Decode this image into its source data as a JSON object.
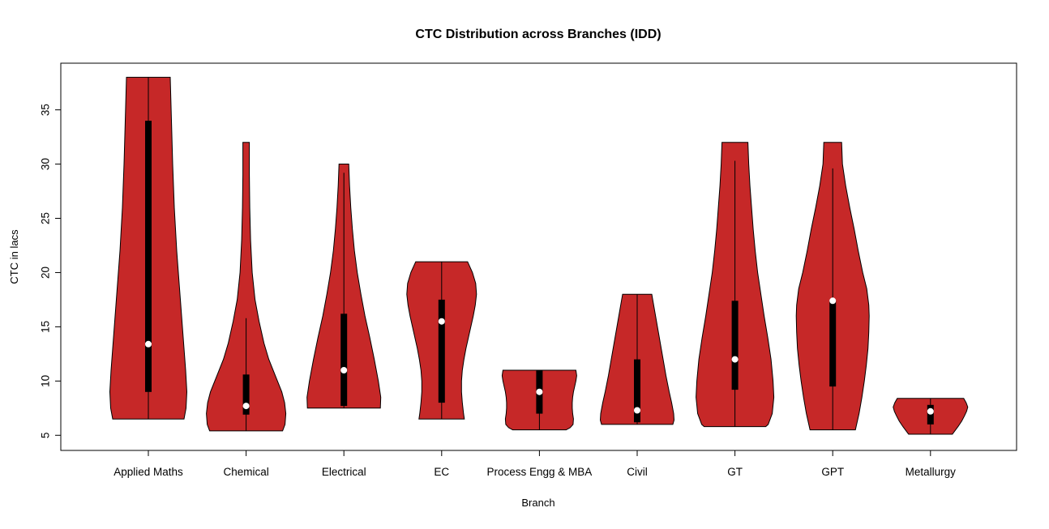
{
  "chart_data": {
    "type": "violin",
    "title": "CTC Distribution across Branches (IDD)",
    "xlabel": "Branch",
    "ylabel": "CTC in lacs",
    "yticks": [
      5,
      10,
      15,
      20,
      25,
      30,
      35
    ],
    "ylim": [
      3.4,
      39.4
    ],
    "grid": false,
    "legend": "none",
    "violin_fill": "#C62828",
    "violin_stroke": "#000000",
    "box_color": "#000000",
    "median_dot_color": "#ffffff",
    "categories": [
      "Applied Maths",
      "Chemical",
      "Electrical",
      "EC",
      "Process Engg & MBA",
      "Civil",
      "GT",
      "GPT",
      "Metallurgy"
    ],
    "series": [
      {
        "branch": "Applied Maths",
        "min": 6.5,
        "max": 38,
        "q1": 9,
        "median": 13.4,
        "q3": 34,
        "whisker_low": 6.5,
        "whisker_high": 38,
        "profile": [
          [
            38,
            27
          ],
          [
            34,
            28.5
          ],
          [
            30,
            30
          ],
          [
            26,
            32
          ],
          [
            22,
            35
          ],
          [
            18,
            39
          ],
          [
            14,
            43
          ],
          [
            11,
            46
          ],
          [
            9,
            47.5
          ],
          [
            7.5,
            46.5
          ],
          [
            6.5,
            44
          ]
        ]
      },
      {
        "branch": "Chemical",
        "min": 5.4,
        "max": 32,
        "q1": 6.9,
        "median": 7.7,
        "q3": 10.6,
        "whisker_low": 5.4,
        "whisker_high": 15.8,
        "profile": [
          [
            32,
            4
          ],
          [
            29,
            4
          ],
          [
            26,
            4.5
          ],
          [
            23,
            5.5
          ],
          [
            20,
            7.5
          ],
          [
            17.5,
            11
          ],
          [
            15.5,
            16
          ],
          [
            13.5,
            22
          ],
          [
            12,
            28
          ],
          [
            10.5,
            36
          ],
          [
            9,
            44
          ],
          [
            8,
            47.5
          ],
          [
            7,
            49
          ],
          [
            6,
            48
          ],
          [
            5.4,
            45
          ]
        ]
      },
      {
        "branch": "Electrical",
        "min": 7.5,
        "max": 30,
        "q1": 7.7,
        "median": 11,
        "q3": 16.2,
        "whisker_low": 7.5,
        "whisker_high": 29.2,
        "profile": [
          [
            30,
            6
          ],
          [
            28,
            7
          ],
          [
            26,
            8.5
          ],
          [
            24,
            10.5
          ],
          [
            22,
            13
          ],
          [
            20,
            16.5
          ],
          [
            18,
            21
          ],
          [
            16,
            26
          ],
          [
            14,
            32
          ],
          [
            12,
            37.5
          ],
          [
            10,
            42.5
          ],
          [
            8.5,
            45.5
          ],
          [
            7.5,
            45
          ]
        ]
      },
      {
        "branch": "EC",
        "min": 6.5,
        "max": 21,
        "q1": 8,
        "median": 15.5,
        "q3": 17.5,
        "whisker_low": 6.5,
        "whisker_high": 21,
        "profile": [
          [
            21,
            32
          ],
          [
            20,
            38
          ],
          [
            19,
            42
          ],
          [
            18,
            43
          ],
          [
            17,
            41.5
          ],
          [
            16,
            39
          ],
          [
            15,
            36
          ],
          [
            14,
            33
          ],
          [
            13,
            30
          ],
          [
            12,
            27.5
          ],
          [
            11,
            25.5
          ],
          [
            10,
            24.5
          ],
          [
            9,
            24.5
          ],
          [
            8,
            25.5
          ],
          [
            7,
            27
          ],
          [
            6.5,
            28
          ]
        ]
      },
      {
        "branch": "Process Engg & MBA",
        "min": 5.5,
        "max": 11,
        "q1": 7,
        "median": 9,
        "q3": 11,
        "whisker_low": 5.5,
        "whisker_high": 11,
        "profile": [
          [
            11,
            45
          ],
          [
            10.5,
            46
          ],
          [
            10,
            45
          ],
          [
            9.5,
            43.5
          ],
          [
            9,
            42
          ],
          [
            8.5,
            41
          ],
          [
            8,
            40.5
          ],
          [
            7.5,
            40.5
          ],
          [
            7,
            41
          ],
          [
            6.5,
            42
          ],
          [
            6,
            41.5
          ],
          [
            5.7,
            38
          ],
          [
            5.5,
            33
          ]
        ]
      },
      {
        "branch": "Civil",
        "min": 6,
        "max": 18,
        "q1": 6.2,
        "median": 7.3,
        "q3": 12,
        "whisker_low": 6,
        "whisker_high": 18,
        "profile": [
          [
            18,
            18
          ],
          [
            16.5,
            21.5
          ],
          [
            15,
            25
          ],
          [
            13.5,
            28.5
          ],
          [
            12,
            32
          ],
          [
            10.5,
            35.5
          ],
          [
            9,
            39.5
          ],
          [
            8,
            42.5
          ],
          [
            7,
            45
          ],
          [
            6.4,
            45.5
          ],
          [
            6,
            44
          ]
        ]
      },
      {
        "branch": "GT",
        "min": 5.8,
        "max": 32,
        "q1": 9.2,
        "median": 12,
        "q3": 17.4,
        "whisker_low": 5.8,
        "whisker_high": 30.3,
        "profile": [
          [
            32,
            16
          ],
          [
            30,
            17
          ],
          [
            28,
            18.5
          ],
          [
            26,
            20.5
          ],
          [
            24,
            22.5
          ],
          [
            22,
            25
          ],
          [
            20,
            28
          ],
          [
            18,
            32
          ],
          [
            16,
            36
          ],
          [
            14,
            40.5
          ],
          [
            12,
            44.5
          ],
          [
            10,
            47
          ],
          [
            8.5,
            48
          ],
          [
            7,
            46
          ],
          [
            6,
            41
          ],
          [
            5.8,
            38
          ]
        ]
      },
      {
        "branch": "GPT",
        "min": 5.5,
        "max": 32,
        "q1": 9.5,
        "median": 17.4,
        "q3": 17.4,
        "whisker_low": 5.5,
        "whisker_high": 29.6,
        "profile": [
          [
            32,
            11
          ],
          [
            30,
            12
          ],
          [
            28,
            16
          ],
          [
            26,
            21
          ],
          [
            24,
            26.5
          ],
          [
            22,
            31.5
          ],
          [
            20,
            37
          ],
          [
            18.5,
            42
          ],
          [
            17,
            44.5
          ],
          [
            16,
            45
          ],
          [
            14.5,
            44.5
          ],
          [
            13,
            43.5
          ],
          [
            11.5,
            41.5
          ],
          [
            10,
            39
          ],
          [
            8.5,
            36
          ],
          [
            7,
            32.5
          ],
          [
            6,
            29.5
          ],
          [
            5.5,
            28
          ]
        ]
      },
      {
        "branch": "Metallurgy",
        "min": 5.1,
        "max": 8.4,
        "q1": 6,
        "median": 7.2,
        "q3": 7.8,
        "whisker_low": 5.1,
        "whisker_high": 8.4,
        "profile": [
          [
            8.4,
            41
          ],
          [
            8,
            44
          ],
          [
            7.6,
            46
          ],
          [
            7.2,
            44.5
          ],
          [
            6.8,
            42
          ],
          [
            6.3,
            38.5
          ],
          [
            5.8,
            34
          ],
          [
            5.4,
            30
          ],
          [
            5.1,
            27
          ]
        ]
      }
    ]
  }
}
